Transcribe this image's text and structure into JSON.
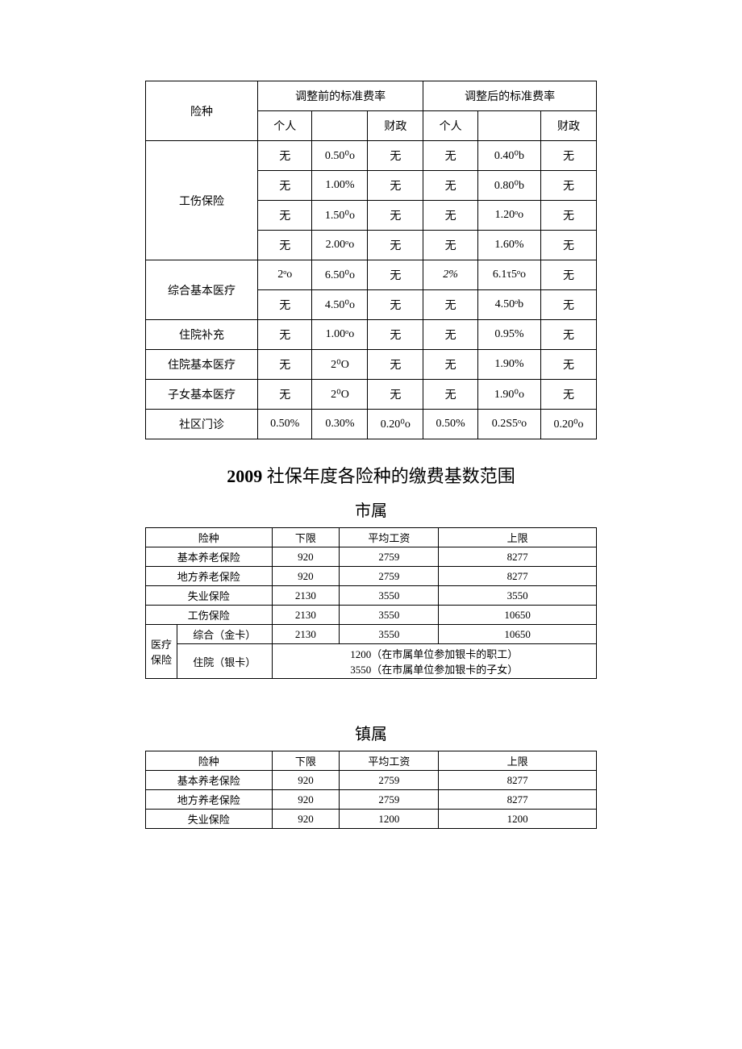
{
  "table1": {
    "headers": {
      "insurance_type": "险种",
      "before": "调整前的标准费率",
      "after": "调整后的标准费率",
      "personal": "个人",
      "fiscal": "财政"
    },
    "rows": [
      {
        "type": "工伤保险",
        "rowspan": 4,
        "b_p": "无",
        "b_m": "0.50⁰o",
        "b_f": "无",
        "a_p": "无",
        "a_m": "0.40⁰b",
        "a_f": "无"
      },
      {
        "b_p": "无",
        "b_m": "1.00%",
        "b_f": "无",
        "a_p": "无",
        "a_m": "0.80⁰b",
        "a_f": "无"
      },
      {
        "b_p": "无",
        "b_m": "1.50⁰o",
        "b_f": "无",
        "a_p": "无",
        "a_m": "1.20ᵒo",
        "a_f": "无"
      },
      {
        "b_p": "无",
        "b_m": "2.00ᵒo",
        "b_f": "无",
        "a_p": "无",
        "a_m": "1.60%",
        "a_f": "无"
      },
      {
        "type": "综合基本医疗",
        "rowspan": 2,
        "b_p": "2ᵒo",
        "b_m": "6.50⁰o",
        "b_f": "无",
        "a_p": "2%",
        "a_p_italic": true,
        "a_m": "6.1τ5ᵒo",
        "a_f": "无"
      },
      {
        "b_p": "无",
        "b_m": "4.50⁰o",
        "b_f": "无",
        "a_p": "无",
        "a_m": "4.50ᵒb",
        "a_f": "无"
      },
      {
        "type": "住院补充",
        "rowspan": 1,
        "b_p": "无",
        "b_m": "1.00ᵒo",
        "b_f": "无",
        "a_p": "无",
        "a_m": "0.95%",
        "a_f": "无"
      },
      {
        "type": "住院基本医疗",
        "rowspan": 1,
        "b_p": "无",
        "b_m": "2⁰O",
        "b_f": "无",
        "a_p": "无",
        "a_m": "1.90%",
        "a_f": "无"
      },
      {
        "type": "子女基本医疗",
        "rowspan": 1,
        "b_p": "无",
        "b_m": "2⁰O",
        "b_f": "无",
        "a_p": "无",
        "a_m": "1.90⁰o",
        "a_f": "无"
      },
      {
        "type": "社区门诊",
        "rowspan": 1,
        "b_p": "0.50%",
        "b_m": "0.30%",
        "b_f": "0.20⁰o",
        "a_p": "0.50%",
        "a_m": "0.2S5ᵒo",
        "a_f": "0.20⁰o"
      }
    ]
  },
  "section_title": {
    "bold": "2009",
    "rest": " 社保年度各险种的缴费基数范围"
  },
  "subtitle_city": "市属",
  "table_city": {
    "headers": {
      "type": "险种",
      "lower": "下限",
      "avg": "平均工资",
      "upper": "上限"
    },
    "rows": [
      {
        "type": "基本养老保险",
        "lower": "920",
        "avg": "2759",
        "upper": "8277"
      },
      {
        "type": "地方养老保险",
        "lower": "920",
        "avg": "2759",
        "upper": "8277"
      },
      {
        "type": "失业保险",
        "lower": "2130",
        "avg": "3550",
        "upper": "3550"
      },
      {
        "type": "工伤保险",
        "lower": "2130",
        "avg": "3550",
        "upper": "10650"
      }
    ],
    "medical_group": "医疗保险",
    "medical_gold": {
      "type": "综合（金卡）",
      "lower": "2130",
      "avg": "3550",
      "upper": "10650"
    },
    "medical_silver": {
      "type": "住院（银卡）",
      "line1": "1200（在市属单位参加银卡的职工）",
      "line2": "3550（在市属单位参加银卡的子女）"
    }
  },
  "subtitle_town": "镇属",
  "table_town": {
    "headers": {
      "type": "险种",
      "lower": "下限",
      "avg": "平均工资",
      "upper": "上限"
    },
    "rows": [
      {
        "type": "基本养老保险",
        "lower": "920",
        "avg": "2759",
        "upper": "8277"
      },
      {
        "type": "地方养老保险",
        "lower": "920",
        "avg": "2759",
        "upper": "8277"
      },
      {
        "type": "失业保险",
        "lower": "920",
        "avg": "1200",
        "upper": "1200"
      }
    ]
  }
}
